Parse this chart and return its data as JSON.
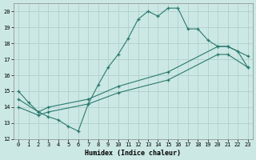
{
  "xlabel": "Humidex (Indice chaleur)",
  "xlim": [
    -0.5,
    23.5
  ],
  "ylim": [
    12,
    20.5
  ],
  "yticks": [
    12,
    13,
    14,
    15,
    16,
    17,
    18,
    19,
    20
  ],
  "xticks": [
    0,
    1,
    2,
    3,
    4,
    5,
    6,
    7,
    8,
    9,
    10,
    11,
    12,
    13,
    14,
    15,
    16,
    17,
    18,
    19,
    20,
    21,
    22,
    23
  ],
  "line_color": "#2a7a6f",
  "bg_color": "#cce8e4",
  "grid_color": "#aaccca",
  "curve1_x": [
    0,
    1,
    2,
    3,
    4,
    5,
    6,
    7,
    8,
    9,
    10,
    11,
    12,
    13,
    14,
    15,
    16,
    17,
    18,
    19,
    20,
    21,
    22,
    23
  ],
  "curve1_y": [
    15.0,
    14.3,
    13.7,
    13.4,
    13.2,
    12.8,
    12.5,
    14.2,
    15.4,
    16.5,
    17.3,
    18.3,
    19.5,
    20.0,
    19.7,
    20.2,
    20.2,
    18.9,
    18.9,
    18.2,
    17.8,
    17.8,
    17.5,
    16.5
  ],
  "curve2_x": [
    0,
    2,
    3,
    7,
    10,
    15,
    20,
    21,
    23
  ],
  "curve2_y": [
    14.5,
    13.7,
    14.0,
    14.5,
    15.3,
    16.2,
    17.8,
    17.8,
    17.2
  ],
  "curve3_x": [
    0,
    2,
    3,
    7,
    10,
    15,
    20,
    21,
    23
  ],
  "curve3_y": [
    14.0,
    13.5,
    13.7,
    14.2,
    14.9,
    15.7,
    17.3,
    17.3,
    16.5
  ]
}
